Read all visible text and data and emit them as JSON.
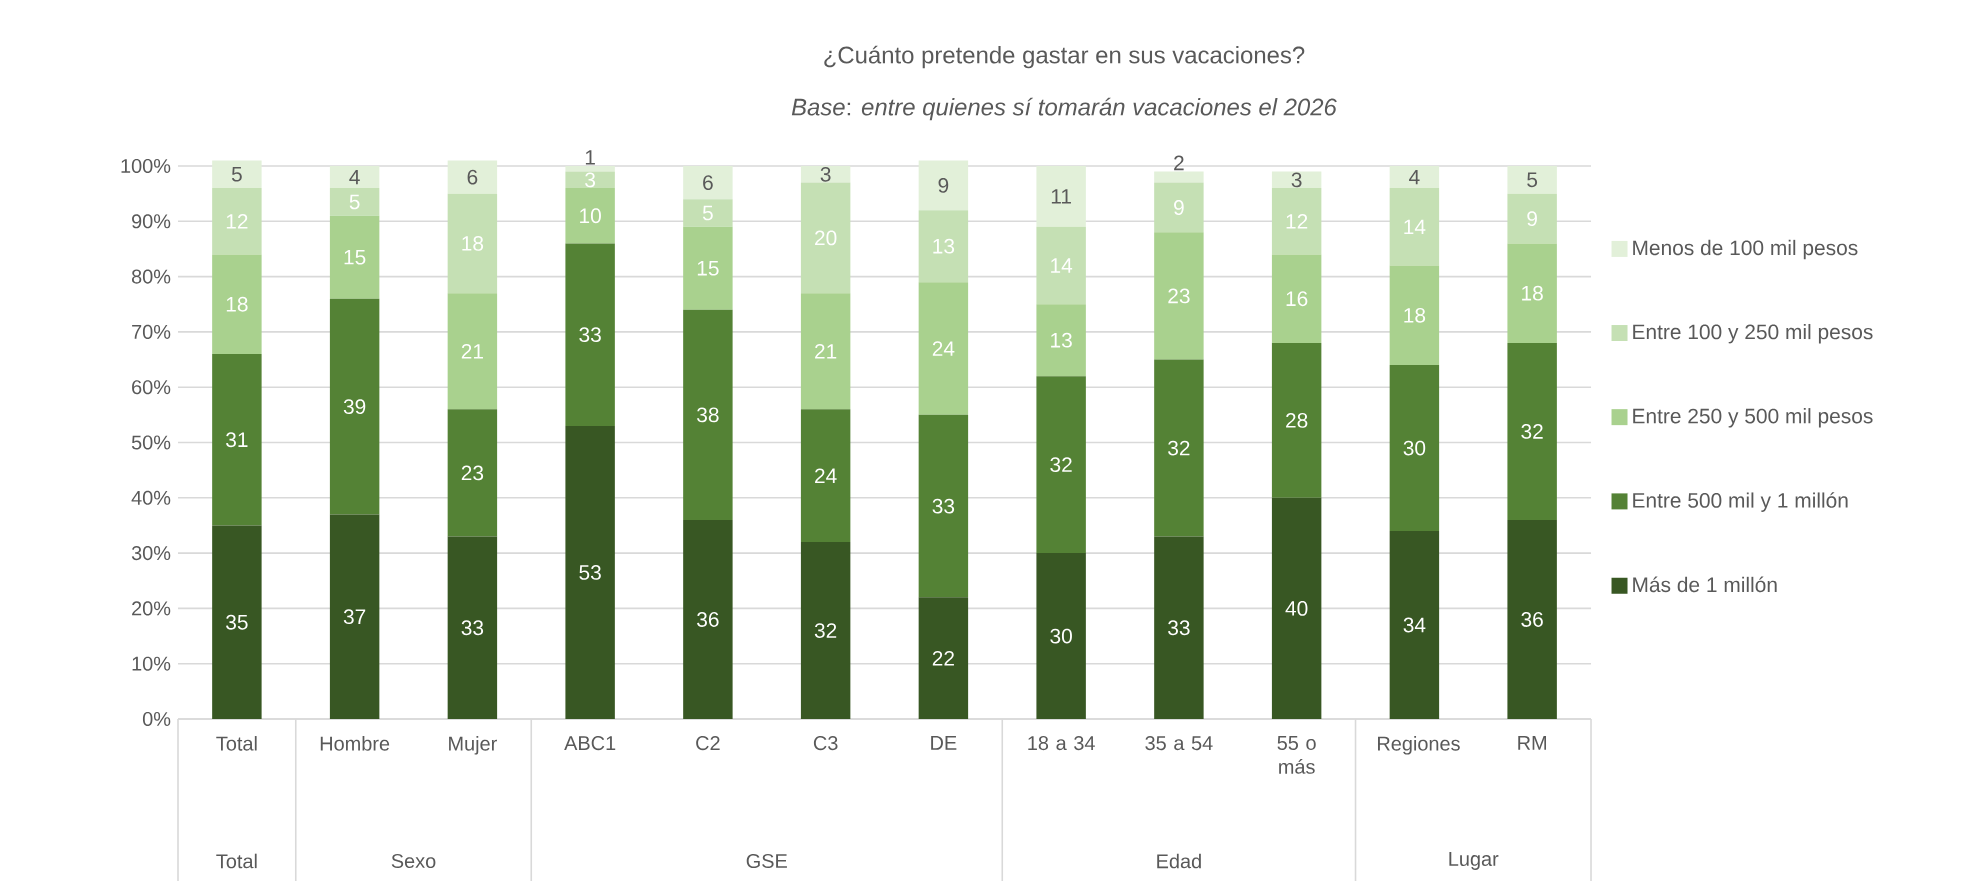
{
  "chart_data": {
    "type": "bar",
    "stacked": true,
    "title": "¿Cuánto pretende gastar en sus vacaciones?",
    "subtitle": "*Base*: *entre quienes sí tomarán vacaciones el 2026*",
    "categories": [
      "Total",
      "Hombre",
      "Mujer",
      "ABC1",
      "C2",
      "C3",
      "DE",
      "18 a 34",
      "35 a 54",
      "55 o más",
      "Regiones",
      "RM"
    ],
    "series": [
      {
        "name": "Más de 1 millón",
        "color": "#385723",
        "values": [
          35,
          37,
          33,
          53,
          36,
          32,
          22,
          30,
          33,
          40,
          34,
          36
        ]
      },
      {
        "name": "Entre 500 mil y 1 millón",
        "color": "#548235",
        "values": [
          31,
          39,
          23,
          33,
          38,
          24,
          33,
          32,
          32,
          28,
          30,
          32
        ]
      },
      {
        "name": "Entre 250 y 500 mil pesos",
        "color": "#a9d18e",
        "values": [
          18,
          15,
          21,
          10,
          15,
          21,
          24,
          13,
          23,
          16,
          18,
          18
        ]
      },
      {
        "name": "Entre 100 y 250 mil pesos",
        "color": "#c5e0b4",
        "values": [
          12,
          5,
          18,
          3,
          5,
          20,
          13,
          14,
          9,
          12,
          14,
          9
        ]
      },
      {
        "name": "Menos de 100 mil pesos",
        "color": "#e2f0d9",
        "values": [
          5,
          4,
          6,
          1,
          6,
          3,
          9,
          11,
          2,
          3,
          4,
          5
        ]
      }
    ],
    "ylim": [
      0,
      101
    ],
    "yticks": [
      {
        "value": 0,
        "label": "0%"
      },
      {
        "value": 10,
        "label": "10%"
      },
      {
        "value": 20,
        "label": "20%"
      },
      {
        "value": 30,
        "label": "30%"
      },
      {
        "value": 40,
        "label": "40%"
      },
      {
        "value": 50,
        "label": "50%"
      },
      {
        "value": 60,
        "label": "60%"
      },
      {
        "value": 70,
        "label": "70%"
      },
      {
        "value": 80,
        "label": "80%"
      },
      {
        "value": 90,
        "label": "90%"
      },
      {
        "value": 100,
        "label": "100%"
      }
    ],
    "grid": "y",
    "legend": "right",
    "data_labels": true,
    "annotations": [
      "Total",
      "Sexo",
      "GSE",
      "Edad",
      "Lugar"
    ]
  }
}
